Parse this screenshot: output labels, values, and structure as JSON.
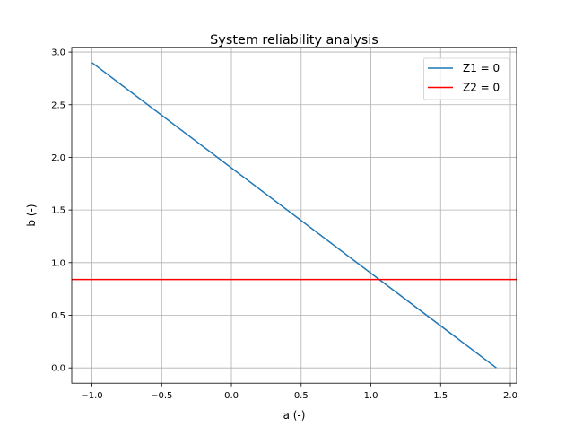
{
  "chart_data": {
    "type": "line",
    "title": "System reliability analysis",
    "xlabel": "a (-)",
    "ylabel": "b (-)",
    "xlim": [
      -1.145,
      2.045
    ],
    "ylim": [
      -0.145,
      3.045
    ],
    "xticks": [
      -1.0,
      -0.5,
      0.0,
      0.5,
      1.0,
      1.5,
      2.0
    ],
    "xtick_labels": [
      "−1.0",
      "−0.5",
      "0.0",
      "0.5",
      "1.0",
      "1.5",
      "2.0"
    ],
    "yticks": [
      0.0,
      0.5,
      1.0,
      1.5,
      2.0,
      2.5,
      3.0
    ],
    "ytick_labels": [
      "0.0",
      "0.5",
      "1.0",
      "1.5",
      "2.0",
      "2.5",
      "3.0"
    ],
    "grid": true,
    "legend_position": "top-right",
    "series": [
      {
        "name": "Z1 = 0",
        "color": "#1f77b4",
        "x": [
          -1.0,
          1.9
        ],
        "y": [
          2.9,
          0.0
        ]
      },
      {
        "name": "Z2 = 0",
        "color": "#ff0000",
        "horizontal": true,
        "y": 0.84
      }
    ]
  }
}
